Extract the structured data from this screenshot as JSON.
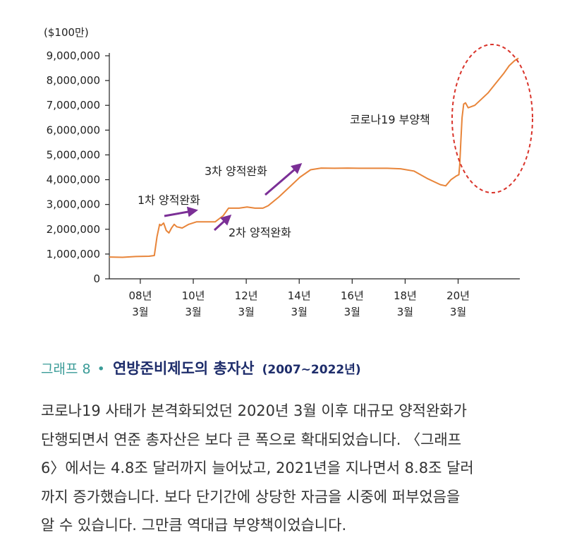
{
  "chart_data": {
    "type": "line",
    "unit_label": "($100만)",
    "ylim": [
      0,
      9000000
    ],
    "yticks": [
      {
        "value": 0,
        "label": "0"
      },
      {
        "value": 1000000,
        "label": "1,000,000"
      },
      {
        "value": 2000000,
        "label": "2,000,000"
      },
      {
        "value": 3000000,
        "label": "3,000,000"
      },
      {
        "value": 4000000,
        "label": "4,000,000"
      },
      {
        "value": 5000000,
        "label": "5,000,000"
      },
      {
        "value": 6000000,
        "label": "6,000,000"
      },
      {
        "value": 7000000,
        "label": "7,000,000"
      },
      {
        "value": 8000000,
        "label": "8,000,000"
      },
      {
        "value": 9000000,
        "label": "9,000,000"
      }
    ],
    "xlim": [
      2007.0,
      2022.5
    ],
    "xticks": [
      {
        "value": 2008.17,
        "line1": "08년",
        "line2": "3월"
      },
      {
        "value": 2010.17,
        "line1": "10년",
        "line2": "3월"
      },
      {
        "value": 2012.17,
        "line1": "12년",
        "line2": "3월"
      },
      {
        "value": 2014.17,
        "line1": "14년",
        "line2": "3월"
      },
      {
        "value": 2016.17,
        "line1": "16년",
        "line2": "3월"
      },
      {
        "value": 2018.17,
        "line1": "18년",
        "line2": "3월"
      },
      {
        "value": 2020.17,
        "line1": "20년",
        "line2": "3월"
      }
    ],
    "line_color": "#e8853a",
    "series": [
      {
        "values": [
          [
            2007.0,
            880000
          ],
          [
            2007.5,
            870000
          ],
          [
            2008.0,
            900000
          ],
          [
            2008.5,
            910000
          ],
          [
            2008.7,
            940000
          ],
          [
            2008.8,
            1700000
          ],
          [
            2008.9,
            2200000
          ],
          [
            2008.95,
            2150000
          ],
          [
            2009.05,
            2250000
          ],
          [
            2009.15,
            1950000
          ],
          [
            2009.25,
            1850000
          ],
          [
            2009.35,
            2050000
          ],
          [
            2009.45,
            2200000
          ],
          [
            2009.55,
            2100000
          ],
          [
            2009.75,
            2050000
          ],
          [
            2010.0,
            2200000
          ],
          [
            2010.3,
            2300000
          ],
          [
            2010.7,
            2300000
          ],
          [
            2011.0,
            2300000
          ],
          [
            2011.3,
            2550000
          ],
          [
            2011.5,
            2850000
          ],
          [
            2011.7,
            2850000
          ],
          [
            2011.9,
            2850000
          ],
          [
            2012.2,
            2900000
          ],
          [
            2012.5,
            2850000
          ],
          [
            2012.8,
            2850000
          ],
          [
            2013.0,
            2950000
          ],
          [
            2013.4,
            3300000
          ],
          [
            2013.8,
            3700000
          ],
          [
            2014.2,
            4100000
          ],
          [
            2014.6,
            4400000
          ],
          [
            2015.0,
            4470000
          ],
          [
            2015.5,
            4460000
          ],
          [
            2016.0,
            4470000
          ],
          [
            2016.5,
            4460000
          ],
          [
            2017.0,
            4460000
          ],
          [
            2017.5,
            4460000
          ],
          [
            2018.0,
            4440000
          ],
          [
            2018.5,
            4350000
          ],
          [
            2019.0,
            4050000
          ],
          [
            2019.5,
            3800000
          ],
          [
            2019.7,
            3750000
          ],
          [
            2019.9,
            4000000
          ],
          [
            2020.1,
            4150000
          ],
          [
            2020.2,
            4200000
          ],
          [
            2020.23,
            4600000
          ],
          [
            2020.27,
            5500000
          ],
          [
            2020.32,
            6500000
          ],
          [
            2020.38,
            7050000
          ],
          [
            2020.45,
            7100000
          ],
          [
            2020.55,
            6900000
          ],
          [
            2020.8,
            7000000
          ],
          [
            2021.0,
            7200000
          ],
          [
            2021.3,
            7500000
          ],
          [
            2021.6,
            7900000
          ],
          [
            2021.9,
            8300000
          ],
          [
            2022.1,
            8600000
          ],
          [
            2022.3,
            8800000
          ],
          [
            2022.45,
            8900000
          ]
        ]
      }
    ],
    "annotations": [
      {
        "id": "qe1",
        "text": "1차 양적완화"
      },
      {
        "id": "qe2",
        "text": "2차 양적완화"
      },
      {
        "id": "qe3",
        "text": "3차 양적완화"
      },
      {
        "id": "covid",
        "text": "코로나19 부양책"
      }
    ],
    "arrow_color": "#7b2f96",
    "highlight_color": "#d9342b"
  },
  "caption": {
    "label": "그래프 8",
    "separator": "•",
    "title": "연방준비제도의 총자산",
    "range": "(2007~2022년)"
  },
  "paragraph": [
    "코로나19 사태가 본격화되었던 2020년 3월 이후 대규모 양적완화가",
    "단행되면서 연준 총자산은 보다 큰 폭으로 확대되었습니다. 〈그래프",
    "6〉에서는 4.8조 달러까지 늘어났고, 2021년을 지나면서 8.8조 달러",
    "까지 증가했습니다. 보다 단기간에 상당한 자금을 시중에 퍼부었음을",
    "알 수 있습니다. 그만큼 역대급 부양책이었습니다."
  ]
}
